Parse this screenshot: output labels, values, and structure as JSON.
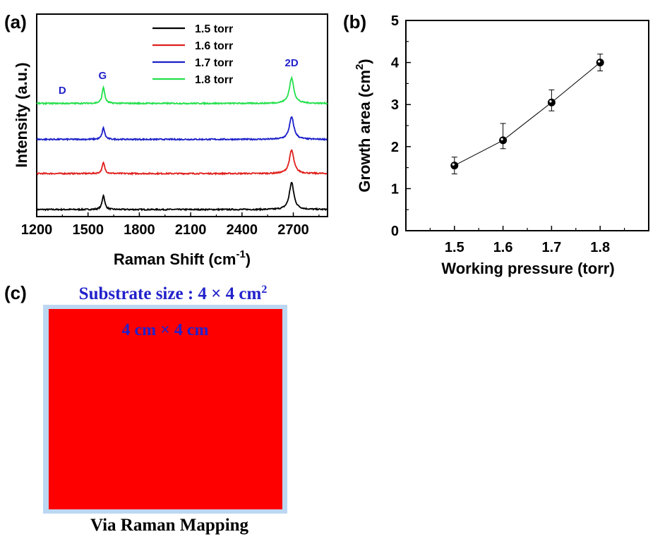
{
  "colors": {
    "black": "#000000",
    "red": "#e0201c",
    "blue": "#1a1fc8",
    "green": "#22e04a",
    "label_blue": "#2222cc",
    "map_red": "#ff0000",
    "map_border": "#bcd7f2"
  },
  "chart_data": [
    {
      "panel": "(a)",
      "type": "line",
      "title": "",
      "xlabel": "Raman Shift (cm",
      "xlabel_sup": "-1",
      "xlabel_close": ")",
      "ylabel": "Intensity (a.u.)",
      "xlim": [
        1200,
        2900
      ],
      "xticks": [
        1200,
        1500,
        1800,
        2100,
        2400,
        2700
      ],
      "grid": false,
      "legend_position": "top-center",
      "peak_labels": [
        {
          "text": "D",
          "x": 1350
        },
        {
          "text": "G",
          "x": 1585
        },
        {
          "text": "2D",
          "x": 2690
        }
      ],
      "series": [
        {
          "name": "1.5 torr",
          "color_key": "black",
          "baseline": 0.0,
          "peaks": [
            {
              "x": 1590,
              "height": 0.4
            },
            {
              "x": 2690,
              "height": 0.75
            }
          ]
        },
        {
          "name": "1.6 torr",
          "color_key": "red",
          "baseline": 1.0,
          "peaks": [
            {
              "x": 1590,
              "height": 0.3
            },
            {
              "x": 2690,
              "height": 0.65
            }
          ]
        },
        {
          "name": "1.7 torr",
          "color_key": "blue",
          "baseline": 1.95,
          "peaks": [
            {
              "x": 1590,
              "height": 0.32
            },
            {
              "x": 2690,
              "height": 0.62
            }
          ]
        },
        {
          "name": "1.8 torr",
          "color_key": "green",
          "baseline": 2.95,
          "peaks": [
            {
              "x": 1590,
              "height": 0.45
            },
            {
              "x": 2690,
              "height": 0.7
            }
          ]
        }
      ]
    },
    {
      "panel": "(b)",
      "type": "scatter",
      "title": "",
      "xlabel": "Working pressure (torr)",
      "ylabel": "Growth area (cm",
      "ylabel_sup": "2",
      "ylabel_close": ")",
      "xlim": [
        1.4,
        1.9
      ],
      "ylim": [
        0,
        5
      ],
      "xticks": [
        1.5,
        1.6,
        1.7,
        1.8
      ],
      "yticks": [
        0,
        1,
        2,
        3,
        4,
        5
      ],
      "grid": false,
      "x": [
        1.5,
        1.6,
        1.7,
        1.8
      ],
      "y": [
        1.55,
        2.15,
        3.05,
        4.0
      ],
      "err_low": [
        0.2,
        0.2,
        0.2,
        0.2
      ],
      "err_high": [
        0.2,
        0.4,
        0.3,
        0.2
      ]
    }
  ],
  "panel_c": {
    "label": "(c)",
    "substrate_prefix": "Substrate size : 4 × 4 cm",
    "substrate_sup": "2",
    "map_label": "4 cm × 4 cm",
    "caption": "Via Raman Mapping"
  }
}
